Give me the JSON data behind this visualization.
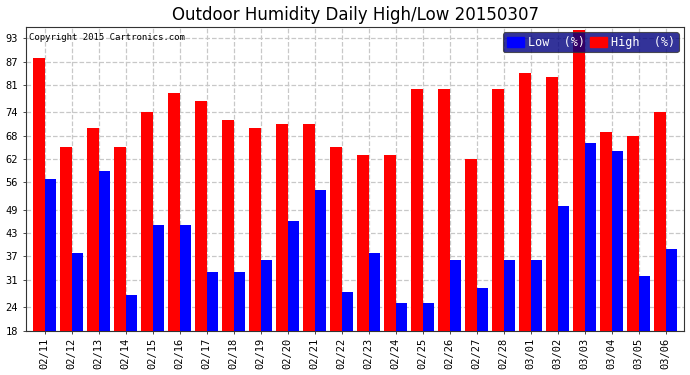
{
  "title": "Outdoor Humidity Daily High/Low 20150307",
  "copyright": "Copyright 2015 Cartronics.com",
  "dates": [
    "02/11",
    "02/12",
    "02/13",
    "02/14",
    "02/15",
    "02/16",
    "02/17",
    "02/18",
    "02/19",
    "02/20",
    "02/21",
    "02/22",
    "02/23",
    "02/24",
    "02/25",
    "02/26",
    "02/27",
    "02/28",
    "03/01",
    "03/02",
    "03/03",
    "03/04",
    "03/05",
    "03/06"
  ],
  "high": [
    88,
    65,
    70,
    65,
    74,
    79,
    77,
    72,
    70,
    71,
    71,
    65,
    63,
    63,
    80,
    80,
    62,
    80,
    84,
    83,
    95,
    69,
    68,
    74
  ],
  "low": [
    57,
    38,
    59,
    27,
    45,
    45,
    33,
    33,
    36,
    46,
    54,
    28,
    38,
    25,
    25,
    36,
    29,
    36,
    36,
    50,
    66,
    64,
    32,
    39
  ],
  "high_color": "#ff0000",
  "low_color": "#0000ff",
  "bg_color": "#ffffff",
  "plot_bg_color": "#ffffff",
  "grid_color": "#c8c8c8",
  "yticks": [
    18,
    24,
    31,
    37,
    43,
    49,
    56,
    62,
    68,
    74,
    81,
    87,
    93
  ],
  "ylim": [
    18,
    96
  ],
  "bar_width": 0.42,
  "title_fontsize": 12,
  "tick_fontsize": 7.5,
  "legend_fontsize": 8.5,
  "figsize": [
    6.9,
    3.75
  ],
  "dpi": 100
}
